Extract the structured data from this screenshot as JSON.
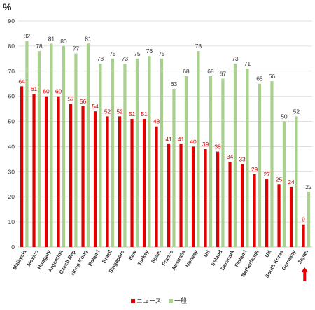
{
  "chart_data": {
    "type": "bar",
    "ylabel": "%",
    "ylim": [
      0,
      90
    ],
    "yticks": [
      0,
      10,
      20,
      30,
      40,
      50,
      60,
      70,
      80,
      90
    ],
    "grid": true,
    "legend_position": "bottom",
    "categories": [
      "Malaysia",
      "Mexico",
      "Hungary",
      "Argentina",
      "Czech Rep",
      "Hong Kong",
      "Poland",
      "Brazil",
      "Singapore",
      "Italy",
      "Turkey",
      "Spain",
      "France",
      "Australia",
      "Norway",
      "US",
      "Ireland",
      "Denmark",
      "Finland",
      "Netherlands",
      "UK",
      "South Korea",
      "Germany",
      "Japan"
    ],
    "series": [
      {
        "name": "ニュース",
        "color": "#e00000",
        "values": [
          64,
          61,
          60,
          60,
          57,
          56,
          54,
          52,
          52,
          51,
          51,
          48,
          41,
          41,
          40,
          39,
          38,
          34,
          33,
          29,
          27,
          25,
          24,
          9
        ]
      },
      {
        "name": "一般",
        "color": "#a9d18e",
        "values": [
          82,
          78,
          81,
          80,
          77,
          81,
          73,
          75,
          73,
          75,
          76,
          75,
          63,
          68,
          78,
          68,
          67,
          73,
          71,
          65,
          66,
          50,
          52,
          22
        ]
      }
    ],
    "highlight": {
      "category": "Japan",
      "marker": "up-arrow",
      "color": "#e00000"
    }
  }
}
